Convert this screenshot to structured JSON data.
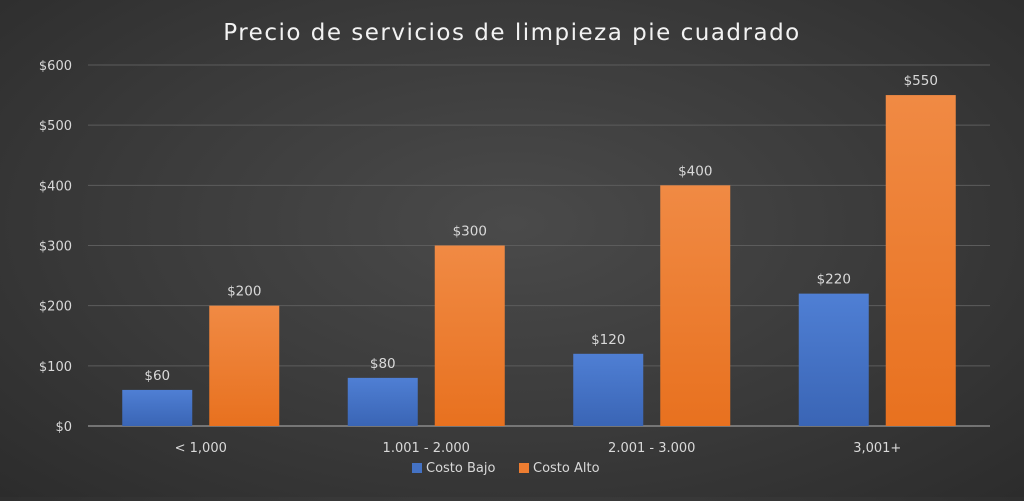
{
  "chart_data": {
    "type": "bar",
    "title": "Precio de servicios de limpieza pie cuadrado",
    "categories": [
      "< 1,000",
      "1.001 - 2.000",
      "2.001 - 3.000",
      "3,001+"
    ],
    "series": [
      {
        "name": "Costo Bajo",
        "values": [
          60,
          80,
          120,
          220
        ],
        "labels": [
          "$60",
          "$80",
          "$120",
          "$220"
        ],
        "color": "#4472c4"
      },
      {
        "name": "Costo Alto",
        "values": [
          200,
          300,
          400,
          550
        ],
        "labels": [
          "$200",
          "$300",
          "$400",
          "$550"
        ],
        "color": "#ed7d31"
      }
    ],
    "ylim": [
      0,
      600
    ],
    "yticks": [
      0,
      100,
      200,
      300,
      400,
      500,
      600
    ],
    "ytick_labels": [
      "$0",
      "$100",
      "$200",
      "$300",
      "$400",
      "$500",
      "$600"
    ],
    "xlabel": "",
    "ylabel": "",
    "grid": true,
    "legend_position": "bottom"
  }
}
